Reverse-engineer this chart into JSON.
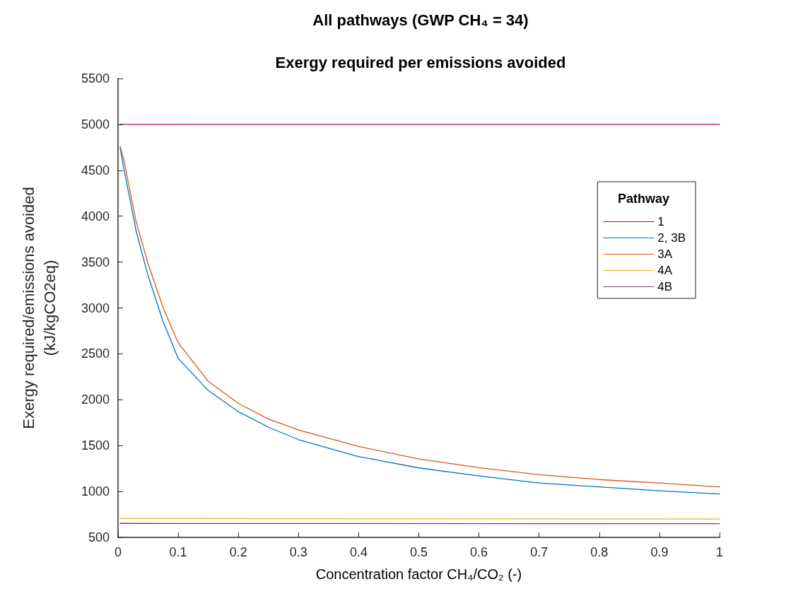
{
  "chart_data": {
    "type": "line",
    "title": "All pathways (GWP CH₄ = 34)",
    "subtitle": "Exergy required per emissions avoided",
    "xlabel": "Concentration factor CH₄/CO₂ (-)",
    "ylabel": "Exergy required/emissions avoided\n(kJ/kgCO2eq)",
    "legend_title": "Pathway",
    "xlim": [
      0,
      1
    ],
    "xticks": [
      0,
      0.1,
      0.2,
      0.3,
      0.4,
      0.5,
      0.6,
      0.7,
      0.8,
      0.9,
      1
    ],
    "ylim": [
      500,
      5500
    ],
    "yticks": [
      500,
      1000,
      1500,
      2000,
      2500,
      3000,
      3500,
      4000,
      4500,
      5000,
      5500
    ],
    "grid": false,
    "legend": "top right",
    "marker": "none",
    "line_style": "solid",
    "series": [
      {
        "name": "1",
        "color": "#a2142f",
        "x": [
          0.0035,
          1
        ],
        "values": [
          5000,
          5000
        ]
      },
      {
        "name": "2, 3B",
        "color": "#0072bd",
        "x": [
          0.0035,
          0.01,
          0.02,
          0.03,
          0.05,
          0.075,
          0.1,
          0.15,
          0.2,
          0.25,
          0.3,
          0.4,
          0.5,
          0.6,
          0.7,
          0.8,
          0.9,
          1
        ],
        "values": [
          4750,
          4500,
          4175,
          3840,
          3350,
          2850,
          2450,
          2100,
          1870,
          1700,
          1565,
          1380,
          1257,
          1170,
          1093,
          1050,
          1008,
          973
        ]
      },
      {
        "name": "3A",
        "color": "#d95319",
        "x": [
          0.0035,
          0.01,
          0.02,
          0.03,
          0.05,
          0.075,
          0.1,
          0.15,
          0.2,
          0.25,
          0.3,
          0.4,
          0.5,
          0.6,
          0.7,
          0.8,
          0.9,
          1
        ],
        "values": [
          4760,
          4600,
          4270,
          3940,
          3480,
          3000,
          2620,
          2200,
          1960,
          1790,
          1670,
          1490,
          1355,
          1260,
          1183,
          1130,
          1093,
          1050
        ]
      },
      {
        "name": "4A",
        "color": "#edb120",
        "x": [
          0.0035,
          1
        ],
        "values": [
          705,
          700
        ]
      },
      {
        "name": "4B",
        "color": "#7e2f8e",
        "x": [
          0.0035,
          1
        ],
        "values": [
          652,
          649
        ]
      }
    ]
  }
}
